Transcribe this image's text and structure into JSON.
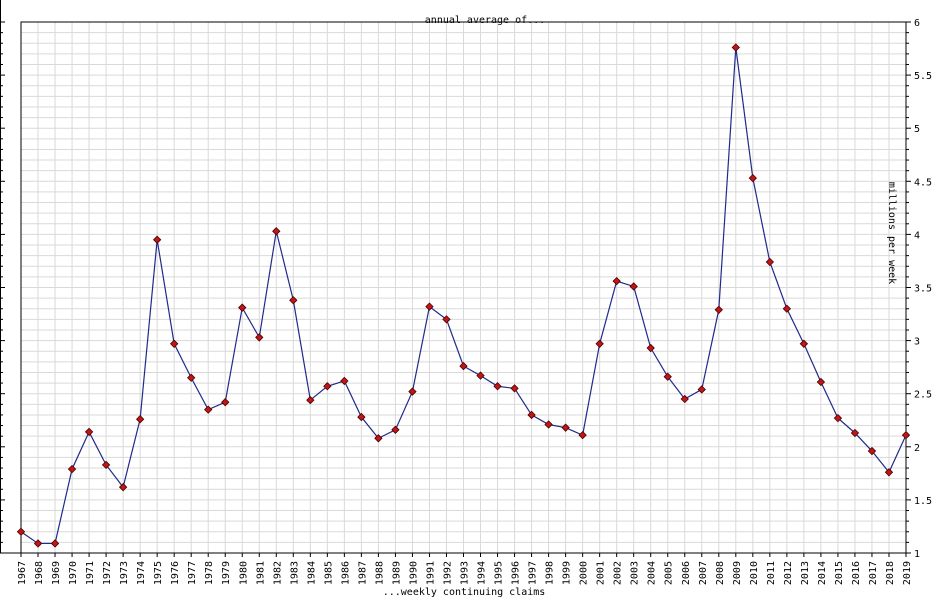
{
  "colors": {
    "line": "#1f2a8c",
    "marker": "#c41414",
    "marker_outline": "#4a0000",
    "grid": "#d9d9d9",
    "frame": "#000000"
  },
  "chart_data": {
    "type": "line",
    "title": "annual average of...",
    "xlabel": "...weekly continuing claims",
    "ylabel": "millions per week",
    "ylim": [
      1,
      6
    ],
    "y_ticks": [
      "1",
      "1.5",
      "2",
      "2.5",
      "3",
      "3.5",
      "4",
      "4.5",
      "5",
      "5.5",
      "6"
    ],
    "grid": true,
    "y_axis_side": "right",
    "marker": "diamond",
    "categories": [
      "1967",
      "1968",
      "1969",
      "1970",
      "1971",
      "1972",
      "1973",
      "1974",
      "1975",
      "1976",
      "1977",
      "1978",
      "1979",
      "1980",
      "1981",
      "1982",
      "1983",
      "1984",
      "1985",
      "1986",
      "1987",
      "1988",
      "1989",
      "1990",
      "1991",
      "1992",
      "1993",
      "1994",
      "1995",
      "1996",
      "1997",
      "1998",
      "1999",
      "2000",
      "2001",
      "2002",
      "2003",
      "2004",
      "2005",
      "2006",
      "2007",
      "2008",
      "2009",
      "2010",
      "2011",
      "2012",
      "2013",
      "2014",
      "2015",
      "2016",
      "2017",
      "2018",
      "2019"
    ],
    "values": [
      1.2,
      1.09,
      1.09,
      1.79,
      2.14,
      1.83,
      1.62,
      2.26,
      3.95,
      2.97,
      2.65,
      2.35,
      2.42,
      3.31,
      3.03,
      4.03,
      3.38,
      2.44,
      2.57,
      2.62,
      2.28,
      2.08,
      2.16,
      2.52,
      3.32,
      3.2,
      2.76,
      2.67,
      2.57,
      2.55,
      2.3,
      2.21,
      2.18,
      2.11,
      2.97,
      3.56,
      3.51,
      2.93,
      2.66,
      2.45,
      2.54,
      3.29,
      5.76,
      4.53,
      3.74,
      3.3,
      2.97,
      2.61,
      2.27,
      2.13,
      1.96,
      1.76,
      2.11
    ]
  }
}
